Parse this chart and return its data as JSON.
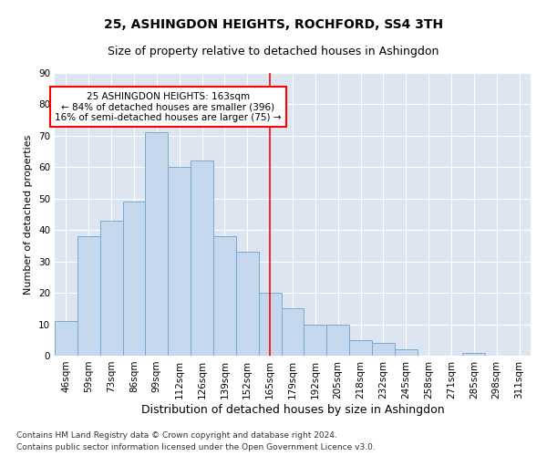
{
  "title": "25, ASHINGDON HEIGHTS, ROCHFORD, SS4 3TH",
  "subtitle": "Size of property relative to detached houses in Ashingdon",
  "xlabel": "Distribution of detached houses by size in Ashingdon",
  "ylabel": "Number of detached properties",
  "bar_labels": [
    "46sqm",
    "59sqm",
    "73sqm",
    "86sqm",
    "99sqm",
    "112sqm",
    "126sqm",
    "139sqm",
    "152sqm",
    "165sqm",
    "179sqm",
    "192sqm",
    "205sqm",
    "218sqm",
    "232sqm",
    "245sqm",
    "258sqm",
    "271sqm",
    "285sqm",
    "298sqm",
    "311sqm"
  ],
  "bar_values": [
    11,
    38,
    43,
    49,
    71,
    60,
    62,
    38,
    33,
    20,
    15,
    10,
    10,
    5,
    4,
    2,
    0,
    0,
    1,
    0,
    0
  ],
  "bar_color": "#c5d8ee",
  "bar_edge_color": "#7aaad0",
  "vline_x": 9.0,
  "vline_color": "red",
  "annotation_text": "25 ASHINGDON HEIGHTS: 163sqm\n← 84% of detached houses are smaller (396)\n16% of semi-detached houses are larger (75) →",
  "annotation_box_color": "white",
  "annotation_box_edge": "red",
  "ylim": [
    0,
    90
  ],
  "yticks": [
    0,
    10,
    20,
    30,
    40,
    50,
    60,
    70,
    80,
    90
  ],
  "bg_color": "#dde6f0",
  "footer_line1": "Contains HM Land Registry data © Crown copyright and database right 2024.",
  "footer_line2": "Contains public sector information licensed under the Open Government Licence v3.0.",
  "title_fontsize": 10,
  "subtitle_fontsize": 9,
  "xlabel_fontsize": 9,
  "ylabel_fontsize": 8,
  "tick_fontsize": 7.5,
  "annotation_fontsize": 7.5,
  "footer_fontsize": 6.5
}
